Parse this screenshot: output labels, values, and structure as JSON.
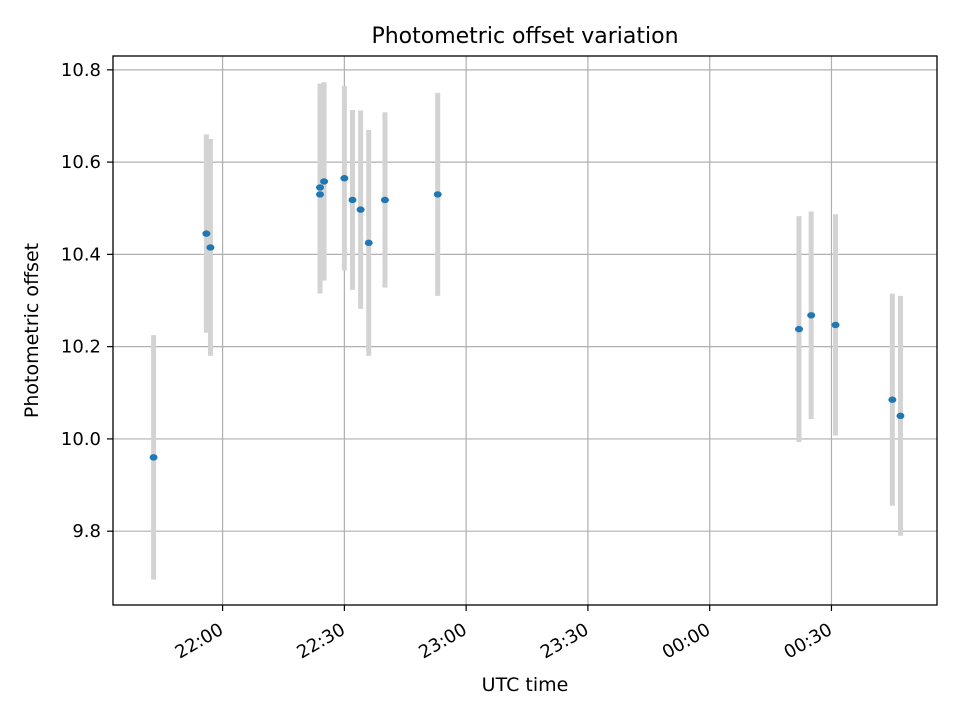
{
  "chart_data": {
    "type": "scatter",
    "title": "Photometric offset variation",
    "xlabel": "UTC time",
    "ylabel": "Photometric offset",
    "x_axis_kind": "time",
    "xlim": [
      "21:33",
      "00:56"
    ],
    "ylim": [
      9.64,
      10.83
    ],
    "x_ticks": [
      "22:00",
      "22:30",
      "23:00",
      "23:30",
      "00:00",
      "00:30"
    ],
    "y_ticks": [
      "9.8",
      "10.0",
      "10.2",
      "10.4",
      "10.6",
      "10.8"
    ],
    "grid": true,
    "marker_color": "#1f77b4",
    "errorbar_color": "#d3d3d3",
    "points": [
      {
        "x": "21:43",
        "y": 9.96,
        "err": 0.265
      },
      {
        "x": "21:56",
        "y": 10.445,
        "err": 0.215
      },
      {
        "x": "21:57",
        "y": 10.415,
        "err": 0.235
      },
      {
        "x": "22:24",
        "y": 10.53,
        "err": 0.215
      },
      {
        "x": "22:24",
        "y": 10.545,
        "err": 0.225
      },
      {
        "x": "22:25",
        "y": 10.558,
        "err": 0.215
      },
      {
        "x": "22:30",
        "y": 10.565,
        "err": 0.2
      },
      {
        "x": "22:32",
        "y": 10.518,
        "err": 0.195
      },
      {
        "x": "22:34",
        "y": 10.497,
        "err": 0.215
      },
      {
        "x": "22:36",
        "y": 10.425,
        "err": 0.245
      },
      {
        "x": "22:40",
        "y": 10.518,
        "err": 0.19
      },
      {
        "x": "22:53",
        "y": 10.53,
        "err": 0.22
      },
      {
        "x": "00:22",
        "y": 10.238,
        "err": 0.245
      },
      {
        "x": "00:25",
        "y": 10.268,
        "err": 0.225
      },
      {
        "x": "00:31",
        "y": 10.247,
        "err": 0.24
      },
      {
        "x": "00:45",
        "y": 10.085,
        "err": 0.23
      },
      {
        "x": "00:47",
        "y": 10.05,
        "err": 0.26
      }
    ]
  }
}
